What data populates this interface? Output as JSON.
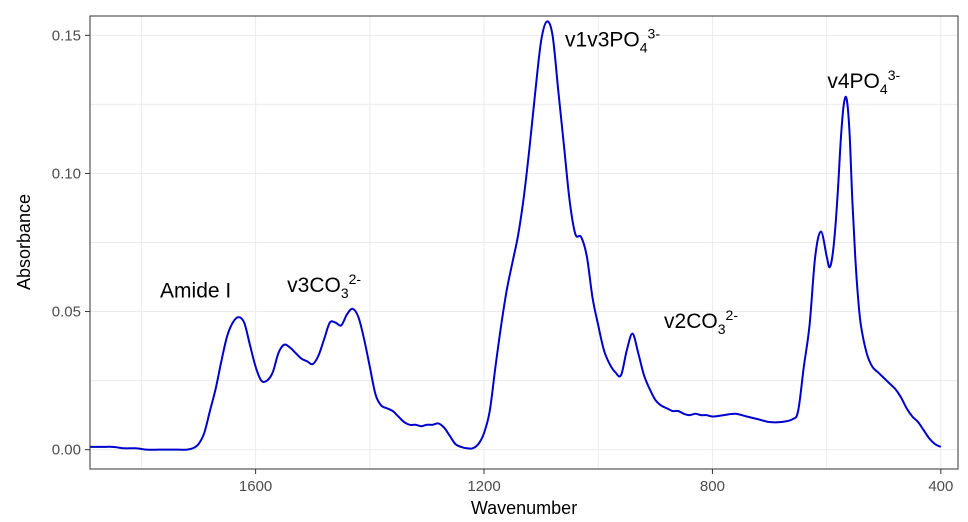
{
  "chart_data": {
    "type": "line",
    "title": "",
    "xlabel": "Wavenumber",
    "ylabel": "Absorbance",
    "xlim": [
      1890,
      370
    ],
    "ylim": [
      -0.007,
      0.157
    ],
    "x_reversed": true,
    "grid": true,
    "line_color": "#0000cd",
    "x_ticks": [
      {
        "value": 1600,
        "label": "1600"
      },
      {
        "value": 1200,
        "label": "1200"
      },
      {
        "value": 800,
        "label": "800"
      },
      {
        "value": 400,
        "label": "400"
      }
    ],
    "y_ticks": [
      {
        "value": 0.0,
        "label": "0.00"
      },
      {
        "value": 0.05,
        "label": "0.05"
      },
      {
        "value": 0.1,
        "label": "0.10"
      },
      {
        "value": 0.15,
        "label": "0.15"
      }
    ],
    "series": [
      {
        "x": [
          1890,
          1870,
          1850,
          1830,
          1810,
          1790,
          1770,
          1750,
          1735,
          1720,
          1710,
          1700,
          1690,
          1680,
          1670,
          1660,
          1650,
          1640,
          1630,
          1620,
          1610,
          1600,
          1590,
          1580,
          1570,
          1560,
          1550,
          1540,
          1530,
          1520,
          1510,
          1500,
          1490,
          1480,
          1470,
          1460,
          1450,
          1440,
          1430,
          1420,
          1410,
          1400,
          1390,
          1380,
          1370,
          1360,
          1350,
          1340,
          1330,
          1320,
          1310,
          1300,
          1290,
          1280,
          1270,
          1260,
          1250,
          1240,
          1230,
          1220,
          1210,
          1200,
          1190,
          1180,
          1170,
          1160,
          1150,
          1140,
          1130,
          1120,
          1110,
          1100,
          1090,
          1080,
          1070,
          1060,
          1050,
          1040,
          1030,
          1020,
          1010,
          1000,
          990,
          980,
          970,
          960,
          950,
          940,
          930,
          920,
          910,
          900,
          890,
          880,
          870,
          860,
          850,
          840,
          830,
          820,
          810,
          800,
          780,
          760,
          740,
          720,
          700,
          680,
          660,
          650,
          640,
          630,
          620,
          610,
          600,
          595,
          590,
          585,
          580,
          575,
          570,
          565,
          560,
          555,
          550,
          545,
          540,
          530,
          520,
          510,
          500,
          490,
          480,
          470,
          460,
          450,
          440,
          430,
          420,
          410,
          400
        ],
        "y": [
          0.001,
          0.001,
          0.001,
          0.0005,
          0.0005,
          0.0,
          0.0,
          0.0,
          0.0,
          0.0,
          0.0005,
          0.002,
          0.006,
          0.014,
          0.022,
          0.032,
          0.041,
          0.046,
          0.048,
          0.046,
          0.038,
          0.03,
          0.025,
          0.025,
          0.028,
          0.035,
          0.038,
          0.037,
          0.035,
          0.033,
          0.032,
          0.031,
          0.034,
          0.04,
          0.046,
          0.046,
          0.045,
          0.049,
          0.051,
          0.048,
          0.04,
          0.03,
          0.02,
          0.016,
          0.015,
          0.014,
          0.012,
          0.01,
          0.009,
          0.009,
          0.0085,
          0.009,
          0.009,
          0.0095,
          0.008,
          0.005,
          0.002,
          0.001,
          0.0005,
          0.0005,
          0.002,
          0.006,
          0.014,
          0.03,
          0.045,
          0.058,
          0.068,
          0.078,
          0.092,
          0.11,
          0.13,
          0.148,
          0.155,
          0.15,
          0.13,
          0.11,
          0.09,
          0.078,
          0.077,
          0.07,
          0.055,
          0.045,
          0.036,
          0.031,
          0.028,
          0.027,
          0.036,
          0.042,
          0.035,
          0.027,
          0.022,
          0.018,
          0.016,
          0.015,
          0.014,
          0.014,
          0.013,
          0.0125,
          0.013,
          0.0125,
          0.0125,
          0.012,
          0.0125,
          0.013,
          0.012,
          0.011,
          0.01,
          0.01,
          0.011,
          0.014,
          0.03,
          0.045,
          0.07,
          0.079,
          0.07,
          0.066,
          0.07,
          0.08,
          0.095,
          0.113,
          0.125,
          0.127,
          0.115,
          0.09,
          0.07,
          0.055,
          0.045,
          0.035,
          0.03,
          0.028,
          0.026,
          0.024,
          0.022,
          0.019,
          0.015,
          0.012,
          0.01,
          0.007,
          0.004,
          0.002,
          0.001
        ]
      }
    ],
    "annotations": [
      {
        "text": "Amide I",
        "x": 1705,
        "y": 0.055
      },
      {
        "text": "v3CO",
        "sub": "3",
        "sup": "2-",
        "x": 1480,
        "y": 0.057
      },
      {
        "text": "v1v3PO",
        "sub": "4",
        "sup": "3-",
        "x": 975,
        "y": 0.146
      },
      {
        "text": "v2CO",
        "sub": "3",
        "sup": "2-",
        "x": 820,
        "y": 0.044
      },
      {
        "text": "v4PO",
        "sub": "4",
        "sup": "3-",
        "x": 535,
        "y": 0.131
      }
    ]
  }
}
